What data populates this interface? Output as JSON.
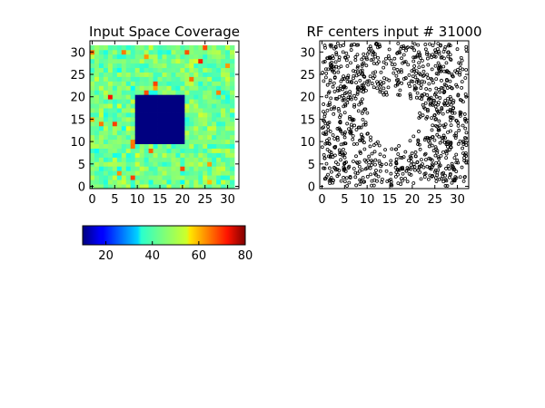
{
  "chart_data": [
    {
      "type": "heatmap",
      "title": "Input Space Coverage",
      "xlabel": "",
      "ylabel": "",
      "xlim": [
        -0.5,
        32.5
      ],
      "ylim": [
        -0.5,
        32.5
      ],
      "xticks": [
        0,
        5,
        10,
        15,
        20,
        25,
        30
      ],
      "yticks": [
        0,
        5,
        10,
        15,
        20,
        25,
        30
      ],
      "grid_size": 32,
      "colormap": "jet",
      "vmin": 10,
      "vmax": 80,
      "background_mean": 44,
      "background_spread": 6,
      "hole": {
        "x": [
          10,
          20
        ],
        "y": [
          10,
          20
        ],
        "value": 10
      },
      "colorbar": {
        "orientation": "horizontal",
        "range": [
          10,
          80
        ],
        "ticks": [
          20,
          40,
          60,
          80
        ]
      }
    },
    {
      "type": "scatter",
      "title": "RF centers input # 31000",
      "xlabel": "",
      "ylabel": "",
      "xlim": [
        -0.5,
        32.5
      ],
      "ylim": [
        -0.5,
        32.5
      ],
      "xticks": [
        0,
        5,
        10,
        15,
        20,
        25,
        30
      ],
      "yticks": [
        0,
        5,
        10,
        15,
        20,
        25,
        30
      ],
      "marker": "hollow-circle",
      "point_count": 1000,
      "empty_region": {
        "center": [
          16,
          15
        ],
        "radius": 5.5
      }
    }
  ]
}
